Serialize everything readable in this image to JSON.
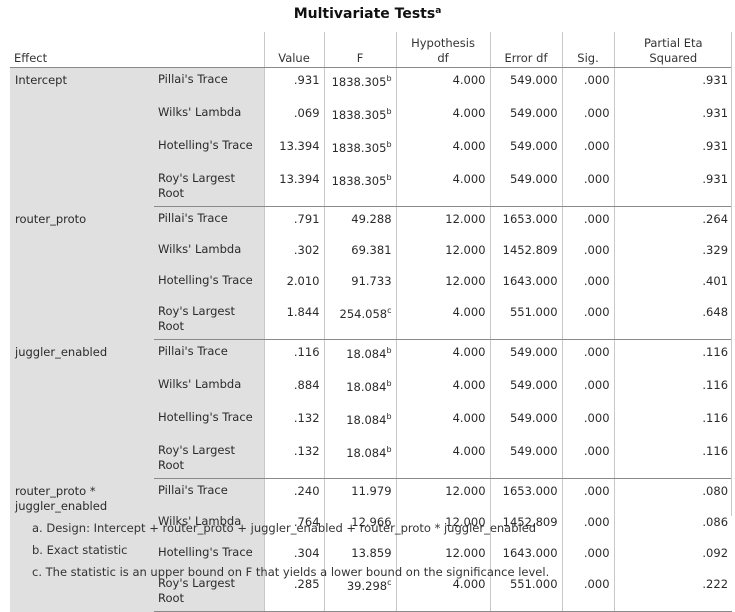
{
  "title": "Multivariate Tests",
  "title_sup": "a",
  "headers": {
    "effect": "Effect",
    "value": "Value",
    "f": "F",
    "hyp_df_1": "Hypothesis",
    "hyp_df_2": "df",
    "error_df": "Error df",
    "sig": "Sig.",
    "eta_1": "Partial Eta",
    "eta_2": "Squared"
  },
  "groups": [
    {
      "effect": [
        "Intercept"
      ],
      "rows": [
        {
          "stat": [
            "Pillai's Trace"
          ],
          "value": ".931",
          "f": "1838.305",
          "f_sup": "b",
          "hyp_df": "4.000",
          "error_df": "549.000",
          "sig": ".000",
          "eta": ".931"
        },
        {
          "stat": [
            "Wilks' Lambda"
          ],
          "value": ".069",
          "f": "1838.305",
          "f_sup": "b",
          "hyp_df": "4.000",
          "error_df": "549.000",
          "sig": ".000",
          "eta": ".931"
        },
        {
          "stat": [
            "Hotelling's Trace"
          ],
          "value": "13.394",
          "f": "1838.305",
          "f_sup": "b",
          "hyp_df": "4.000",
          "error_df": "549.000",
          "sig": ".000",
          "eta": ".931"
        },
        {
          "stat": [
            "Roy's Largest",
            "Root"
          ],
          "value": "13.394",
          "f": "1838.305",
          "f_sup": "b",
          "hyp_df": "4.000",
          "error_df": "549.000",
          "sig": ".000",
          "eta": ".931"
        }
      ]
    },
    {
      "effect": [
        "router_proto"
      ],
      "rows": [
        {
          "stat": [
            "Pillai's Trace"
          ],
          "value": ".791",
          "f": "49.288",
          "f_sup": "",
          "hyp_df": "12.000",
          "error_df": "1653.000",
          "sig": ".000",
          "eta": ".264"
        },
        {
          "stat": [
            "Wilks' Lambda"
          ],
          "value": ".302",
          "f": "69.381",
          "f_sup": "",
          "hyp_df": "12.000",
          "error_df": "1452.809",
          "sig": ".000",
          "eta": ".329"
        },
        {
          "stat": [
            "Hotelling's Trace"
          ],
          "value": "2.010",
          "f": "91.733",
          "f_sup": "",
          "hyp_df": "12.000",
          "error_df": "1643.000",
          "sig": ".000",
          "eta": ".401"
        },
        {
          "stat": [
            "Roy's Largest",
            "Root"
          ],
          "value": "1.844",
          "f": "254.058",
          "f_sup": "c",
          "hyp_df": "4.000",
          "error_df": "551.000",
          "sig": ".000",
          "eta": ".648"
        }
      ]
    },
    {
      "effect": [
        "juggler_enabled"
      ],
      "rows": [
        {
          "stat": [
            "Pillai's Trace"
          ],
          "value": ".116",
          "f": "18.084",
          "f_sup": "b",
          "hyp_df": "4.000",
          "error_df": "549.000",
          "sig": ".000",
          "eta": ".116"
        },
        {
          "stat": [
            "Wilks' Lambda"
          ],
          "value": ".884",
          "f": "18.084",
          "f_sup": "b",
          "hyp_df": "4.000",
          "error_df": "549.000",
          "sig": ".000",
          "eta": ".116"
        },
        {
          "stat": [
            "Hotelling's Trace"
          ],
          "value": ".132",
          "f": "18.084",
          "f_sup": "b",
          "hyp_df": "4.000",
          "error_df": "549.000",
          "sig": ".000",
          "eta": ".116"
        },
        {
          "stat": [
            "Roy's Largest",
            "Root"
          ],
          "value": ".132",
          "f": "18.084",
          "f_sup": "b",
          "hyp_df": "4.000",
          "error_df": "549.000",
          "sig": ".000",
          "eta": ".116"
        }
      ]
    },
    {
      "effect": [
        "router_proto *",
        "juggler_enabled"
      ],
      "rows": [
        {
          "stat": [
            "Pillai's Trace"
          ],
          "value": ".240",
          "f": "11.979",
          "f_sup": "",
          "hyp_df": "12.000",
          "error_df": "1653.000",
          "sig": ".000",
          "eta": ".080"
        },
        {
          "stat": [
            "Wilks' Lambda"
          ],
          "value": ".764",
          "f": "12.966",
          "f_sup": "",
          "hyp_df": "12.000",
          "error_df": "1452.809",
          "sig": ".000",
          "eta": ".086"
        },
        {
          "stat": [
            "Hotelling's Trace"
          ],
          "value": ".304",
          "f": "13.859",
          "f_sup": "",
          "hyp_df": "12.000",
          "error_df": "1643.000",
          "sig": ".000",
          "eta": ".092"
        },
        {
          "stat": [
            "Roy's Largest",
            "Root"
          ],
          "value": ".285",
          "f": "39.298",
          "f_sup": "c",
          "hyp_df": "4.000",
          "error_df": "551.000",
          "sig": ".000",
          "eta": ".222"
        }
      ]
    }
  ],
  "footnotes": [
    "a. Design: Intercept + router_proto + juggler_enabled + router_proto * juggler_enabled",
    "b. Exact statistic",
    "c. The statistic is an upper bound on F that yields a lower bound on the significance level."
  ],
  "colors": {
    "label_bg": "#e0e0e0",
    "rule": "#8a8a8a",
    "grid": "#c8c8c8"
  }
}
